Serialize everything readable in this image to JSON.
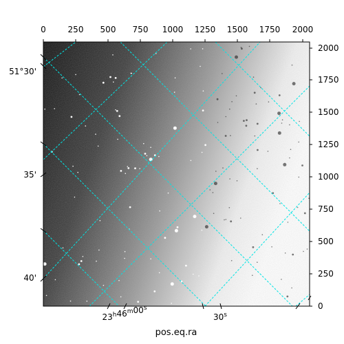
{
  "figure": {
    "xlabel": "pos.eq.ra",
    "top_axis_ticks": [
      "0",
      "250",
      "500",
      "750",
      "1000",
      "1250",
      "1500",
      "1750",
      "2000"
    ],
    "right_axis_ticks": [
      "0",
      "250",
      "500",
      "750",
      "1000",
      "1250",
      "1500",
      "1750",
      "2000"
    ],
    "dec_ticks": [
      "51°30'",
      "35'",
      "40'"
    ],
    "ra_ticks": [
      "23h46m00s",
      "30s"
    ],
    "pixel_range": [
      0,
      2048
    ],
    "grid_color": "#00e5e5",
    "background": "gradient dark (left) to white (right) noisy star field"
  }
}
